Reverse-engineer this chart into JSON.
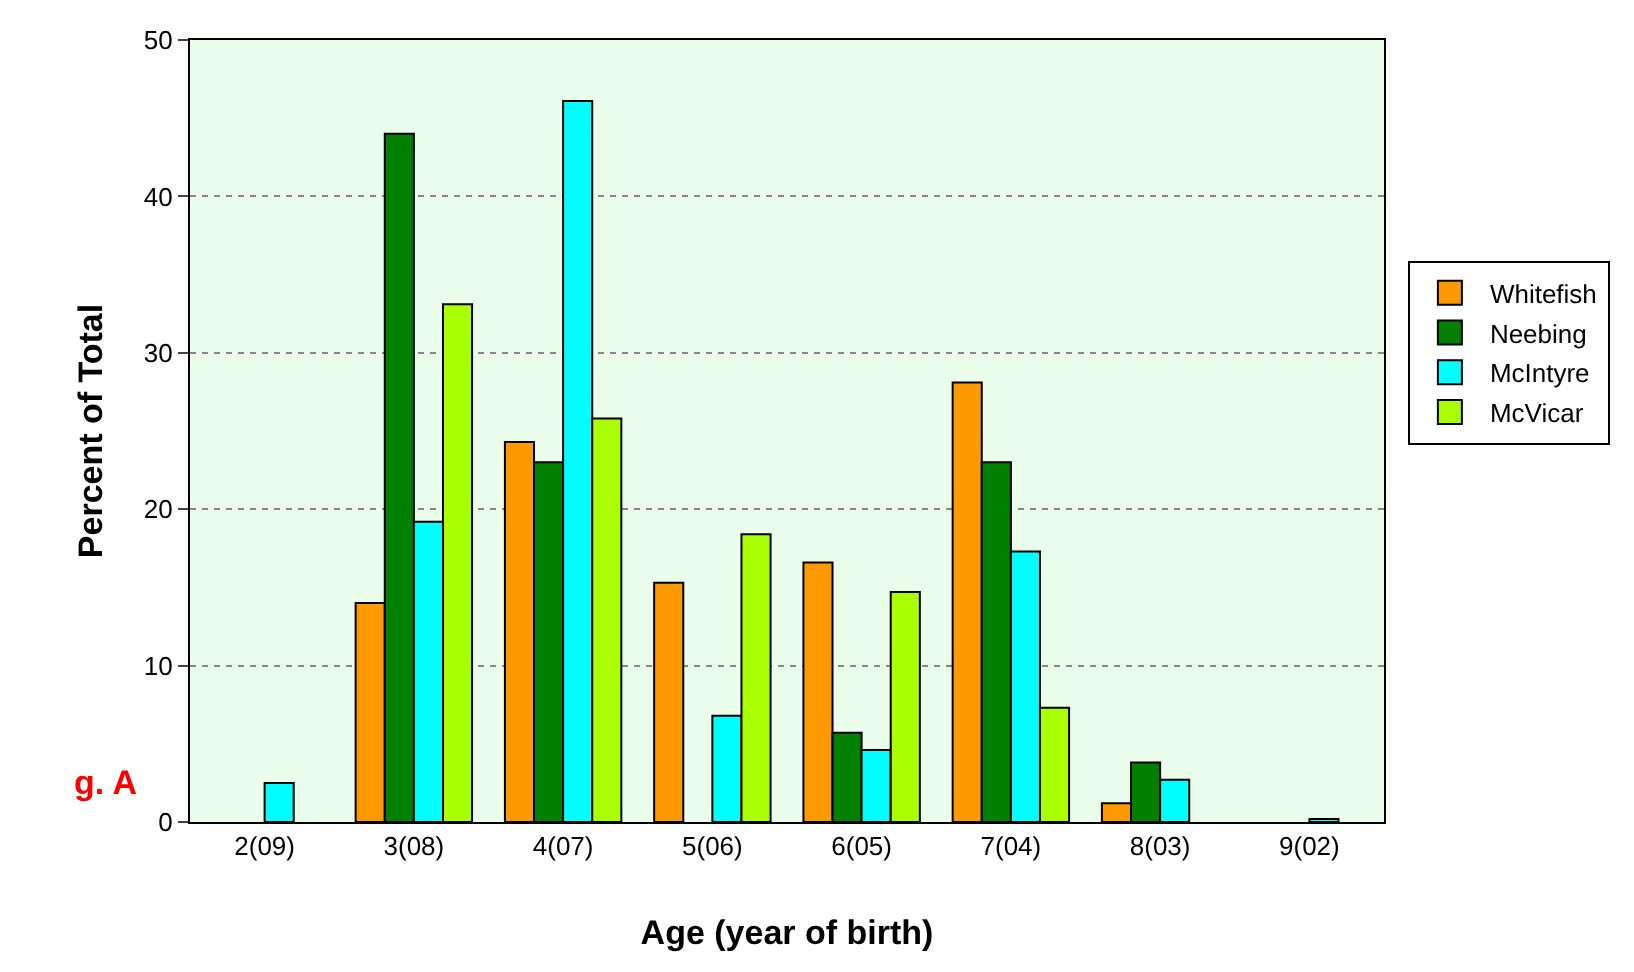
{
  "chart_data": {
    "type": "bar",
    "xlabel": "Age (year of birth)",
    "ylabel": "Percent of Total",
    "categories": [
      "2(09)",
      "3(08)",
      "4(07)",
      "5(06)",
      "6(05)",
      "7(04)",
      "8(03)",
      "9(02)"
    ],
    "series": [
      {
        "name": "Whitefish",
        "color": "#ff9900",
        "values": [
          null,
          14.0,
          24.3,
          15.3,
          16.6,
          28.1,
          1.2,
          null
        ]
      },
      {
        "name": "Neebing",
        "color": "#008000",
        "values": [
          null,
          44.0,
          23.0,
          null,
          5.7,
          23.0,
          3.8,
          null
        ]
      },
      {
        "name": "McIntyre",
        "color": "#00ffff",
        "values": [
          2.5,
          19.2,
          46.1,
          6.8,
          4.6,
          17.3,
          2.7,
          0.2
        ]
      },
      {
        "name": "McVicar",
        "color": "#aaff00",
        "values": [
          null,
          33.1,
          25.8,
          18.4,
          14.7,
          7.3,
          null,
          null
        ]
      }
    ],
    "ylim": [
      0,
      50
    ],
    "yticks": [
      0,
      10,
      20,
      30,
      40,
      50
    ],
    "grid": "y",
    "legend": "right",
    "annotations": [
      "g. A"
    ]
  }
}
